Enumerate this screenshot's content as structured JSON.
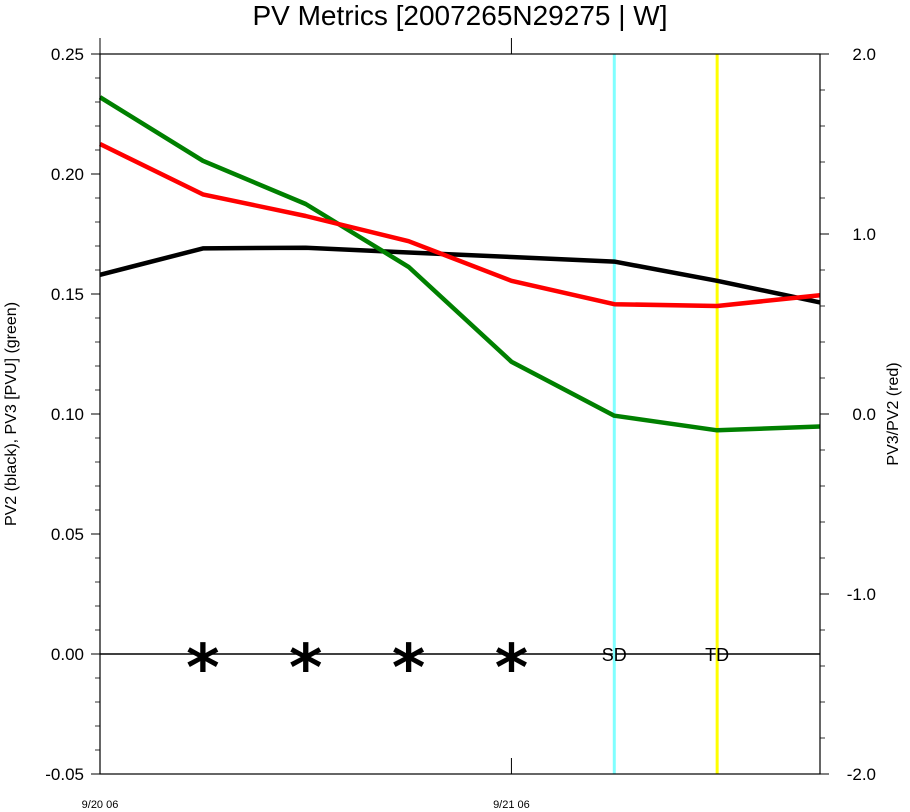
{
  "chart_data": {
    "type": "line",
    "title": "PV Metrics [2007265N29275 | W]",
    "ylabel_left": "PV2 (black), PV3 [PVU] (green)",
    "ylabel_right": "PV3/PV2 (red)",
    "ylim_left": [
      -0.05,
      0.25
    ],
    "ylim_right": [
      -2.0,
      2.0
    ],
    "yticks_left": [
      "0.25",
      "0.20",
      "0.15",
      "0.10",
      "0.05",
      "0.00",
      "-0.05"
    ],
    "yticks_right": [
      "2.0",
      "1.0",
      "0.0",
      "-1.0",
      "-2.0"
    ],
    "x_labels": [
      {
        "x": 0,
        "label": "9/20 06"
      },
      {
        "x": 4,
        "label": "9/21 06"
      }
    ],
    "x_range": [
      0,
      7
    ],
    "series": [
      {
        "key": "pv2",
        "axis": "left",
        "color": "#000000",
        "x": [
          0,
          1,
          2,
          3,
          4,
          5,
          6,
          7
        ],
        "values": [
          0.158,
          0.169,
          0.1693,
          0.1673,
          0.1654,
          0.1635,
          0.1555,
          0.1465
        ]
      },
      {
        "key": "pv3",
        "axis": "left",
        "color": "#008000",
        "x": [
          0,
          1,
          2,
          3,
          4,
          5,
          6,
          7
        ],
        "values": [
          0.232,
          0.2055,
          0.1875,
          0.1613,
          0.1218,
          0.0993,
          0.0932,
          0.0948
        ]
      },
      {
        "key": "ratio",
        "axis": "right",
        "color": "#ff0000",
        "x": [
          0,
          1,
          2,
          3,
          4,
          5,
          6,
          7
        ],
        "values": [
          1.5,
          1.22,
          1.1,
          0.96,
          0.74,
          0.61,
          0.6,
          0.66
        ]
      }
    ],
    "zero_line": 0.0,
    "stars_x": [
      1,
      2,
      3,
      4
    ],
    "star_symbol": "*",
    "vertical_markers": [
      {
        "x": 5,
        "label": "SD",
        "color": "#80ffff"
      },
      {
        "x": 6,
        "label": "TD",
        "color": "#ffff00"
      }
    ],
    "grid": false
  }
}
